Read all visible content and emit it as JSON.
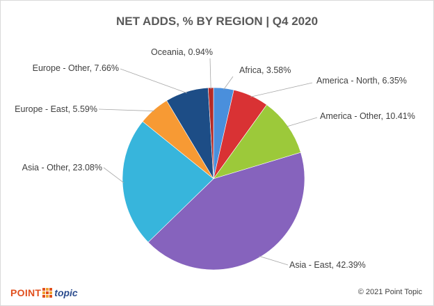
{
  "chart_data": {
    "type": "pie",
    "title": "NET ADDS, % BY REGION | Q4 2020",
    "start_angle_deg": 0,
    "direction": "clockwise",
    "slices": [
      {
        "label": "Africa, 3.58%",
        "name": "Africa",
        "value": 3.58,
        "color": "#4a8fdc"
      },
      {
        "label": "America - North, 6.35%",
        "name": "America - North",
        "value": 6.35,
        "color": "#d93234"
      },
      {
        "label": "America - Other, 10.41%",
        "name": "America - Other",
        "value": 10.41,
        "color": "#9cc93a"
      },
      {
        "label": "Asia - East, 42.39%",
        "name": "Asia - East",
        "value": 42.39,
        "color": "#8663bd"
      },
      {
        "label": "Asia - Other, 23.08%",
        "name": "Asia - Other",
        "value": 23.08,
        "color": "#37b5dc"
      },
      {
        "label": "Europe - East, 5.59%",
        "name": "Europe - East",
        "value": 5.59,
        "color": "#f79a34"
      },
      {
        "label": "Europe - Other, 7.66%",
        "name": "Europe - Other",
        "value": 7.66,
        "color": "#1d4d86"
      },
      {
        "label": "Oceania, 0.94%",
        "name": "Oceania",
        "value": 0.94,
        "color": "#b52a26"
      }
    ]
  },
  "branding": {
    "logo_point": "POINT",
    "logo_topic": "topic",
    "copyright": "© 2021 Point Topic",
    "colors": {
      "logo_point": "#e1501e",
      "logo_topic": "#2a4b8d"
    }
  }
}
